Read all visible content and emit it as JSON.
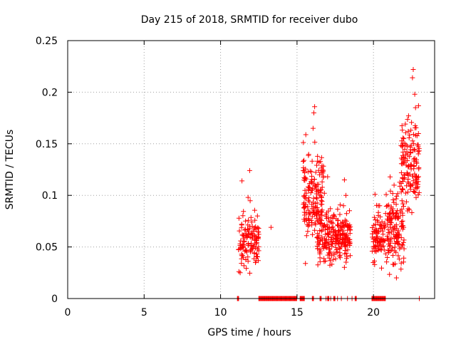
{
  "chart_data": {
    "type": "scatter",
    "title": "Day 215 of 2018, SRMTID for receiver dubo",
    "xlabel": "GPS time / hours",
    "ylabel": "SRMTID / TECUs",
    "xlim": [
      0,
      24
    ],
    "ylim": [
      0,
      0.25
    ],
    "xticks": [
      0,
      5,
      10,
      15,
      20
    ],
    "xtick_labels": [
      "0",
      "5",
      "10",
      "15",
      "20"
    ],
    "yticks": [
      0,
      0.05,
      0.1,
      0.15,
      0.2,
      0.25
    ],
    "ytick_labels": [
      "0",
      "0.05",
      "0.1",
      "0.15",
      "0.2",
      "0.25"
    ],
    "grid": true,
    "marker": "plus",
    "series": [
      {
        "name": "SRMTID",
        "color": "#ff0000",
        "clusters": [
          {
            "x_range": [
              11.1,
              12.5
            ],
            "y_mean": 0.055,
            "y_spread": 0.022,
            "count": 130,
            "seed": 11
          },
          {
            "x_range": [
              15.4,
              16.8
            ],
            "y_mean": 0.1,
            "y_spread": 0.035,
            "count": 170,
            "seed": 23
          },
          {
            "x_range": [
              16.3,
              18.5
            ],
            "y_mean": 0.06,
            "y_spread": 0.02,
            "count": 240,
            "seed": 37
          },
          {
            "x_range": [
              19.9,
              20.8
            ],
            "y_mean": 0.06,
            "y_spread": 0.02,
            "count": 90,
            "seed": 41
          },
          {
            "x_range": [
              20.8,
              22.0
            ],
            "y_mean": 0.07,
            "y_spread": 0.03,
            "count": 140,
            "seed": 53
          },
          {
            "x_range": [
              21.8,
              23.0
            ],
            "y_mean": 0.13,
            "y_spread": 0.035,
            "count": 150,
            "seed": 67
          }
        ],
        "points": [
          [
            11.9,
            0.124
          ],
          [
            11.8,
            0.098
          ],
          [
            11.4,
            0.114
          ],
          [
            13.3,
            0.069
          ],
          [
            16.15,
            0.186
          ],
          [
            16.1,
            0.18
          ],
          [
            16.05,
            0.165
          ],
          [
            18.1,
            0.115
          ],
          [
            18.2,
            0.1
          ],
          [
            15.55,
            0.034
          ],
          [
            22.6,
            0.222
          ],
          [
            22.55,
            0.214
          ],
          [
            22.7,
            0.198
          ],
          [
            22.75,
            0.185
          ],
          [
            21.5,
            0.02
          ],
          [
            17.0,
            0.118
          ],
          [
            20.4,
            0.09
          ],
          [
            20.1,
            0.101
          ]
        ],
        "zero_ranges": [
          [
            11.1,
            11.2
          ],
          [
            12.5,
            15.0
          ],
          [
            15.2,
            15.5
          ],
          [
            16.0,
            16.1
          ],
          [
            16.5,
            16.6
          ],
          [
            17.0,
            17.1
          ],
          [
            17.4,
            17.5
          ],
          [
            18.8,
            18.9
          ],
          [
            19.9,
            20.8
          ]
        ],
        "zero_points": [
          16.9,
          17.2,
          17.65,
          17.9,
          18.3,
          18.6,
          23.0
        ]
      }
    ]
  }
}
